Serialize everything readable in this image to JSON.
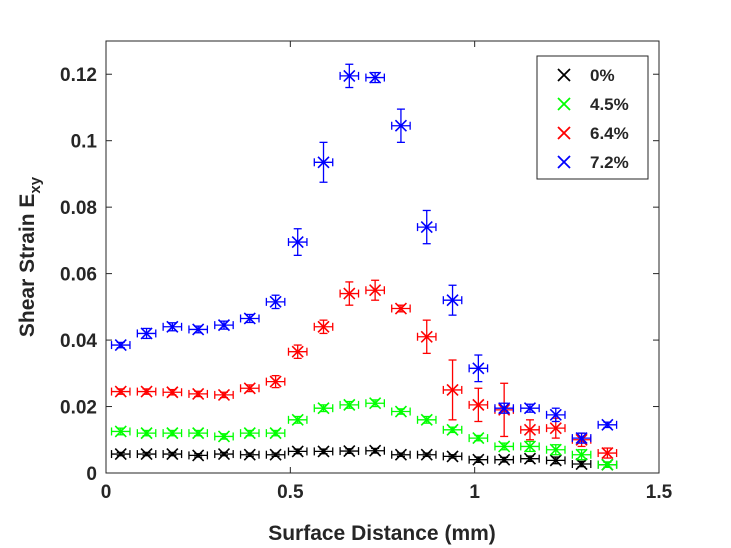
{
  "chart_data": {
    "type": "scatter",
    "title": "",
    "xlabel": "Surface Distance (mm)",
    "ylabel_main": "Shear Strain E",
    "ylabel_sub": "xy",
    "xlim": [
      0,
      1.5
    ],
    "ylim": [
      0,
      0.13
    ],
    "xticks": [
      0,
      0.5,
      1,
      1.5
    ],
    "xtick_labels": [
      "0",
      "0.5",
      "1",
      "1.5"
    ],
    "yticks": [
      0,
      0.02,
      0.04,
      0.06,
      0.08,
      0.1,
      0.12
    ],
    "ytick_labels": [
      "0",
      "0.02",
      "0.04",
      "0.06",
      "0.08",
      "0.1",
      "0.12"
    ],
    "grid": false,
    "legend_position": "top-right",
    "x_error": 0.025,
    "series": [
      {
        "name": "0%",
        "color": "#000000",
        "x": [
          0.04,
          0.11,
          0.18,
          0.25,
          0.32,
          0.39,
          0.46,
          0.52,
          0.59,
          0.66,
          0.73,
          0.8,
          0.87,
          0.94,
          1.01,
          1.08,
          1.15,
          1.22,
          1.29,
          1.36
        ],
        "y": [
          0.0057,
          0.0057,
          0.0057,
          0.0053,
          0.0057,
          0.0055,
          0.0055,
          0.0065,
          0.0065,
          0.0066,
          0.0067,
          0.0055,
          0.0055,
          0.005,
          0.004,
          0.004,
          0.0043,
          0.0038,
          0.0027,
          0.0025
        ],
        "yerr": [
          0.0005,
          0.0005,
          0.0005,
          0.0005,
          0.0005,
          0.0005,
          0.0005,
          0.0007,
          0.0007,
          0.0007,
          0.0007,
          0.0005,
          0.0005,
          0.0005,
          0.0008,
          0.0007,
          0.0008,
          0.001,
          0.0008,
          0.0008
        ]
      },
      {
        "name": "4.5%",
        "color": "#00ff00",
        "x": [
          0.04,
          0.11,
          0.18,
          0.25,
          0.32,
          0.39,
          0.46,
          0.52,
          0.59,
          0.66,
          0.73,
          0.8,
          0.87,
          0.94,
          1.01,
          1.08,
          1.15,
          1.22,
          1.29,
          1.36
        ],
        "y": [
          0.0125,
          0.012,
          0.012,
          0.012,
          0.011,
          0.012,
          0.012,
          0.016,
          0.0195,
          0.0205,
          0.021,
          0.0185,
          0.016,
          0.013,
          0.0105,
          0.008,
          0.008,
          0.007,
          0.0055,
          0.0025
        ],
        "yerr": [
          0.001,
          0.0008,
          0.0008,
          0.0008,
          0.0008,
          0.0008,
          0.0008,
          0.001,
          0.001,
          0.001,
          0.001,
          0.0008,
          0.001,
          0.0008,
          0.0008,
          0.001,
          0.0015,
          0.0015,
          0.0015,
          0.0008
        ]
      },
      {
        "name": "6.4%",
        "color": "#ff0000",
        "x": [
          0.04,
          0.11,
          0.18,
          0.25,
          0.32,
          0.39,
          0.46,
          0.52,
          0.59,
          0.66,
          0.73,
          0.8,
          0.87,
          0.94,
          1.01,
          1.08,
          1.15,
          1.22,
          1.29,
          1.36
        ],
        "y": [
          0.0245,
          0.0245,
          0.0243,
          0.0238,
          0.0235,
          0.0255,
          0.0275,
          0.0365,
          0.044,
          0.054,
          0.055,
          0.0495,
          0.041,
          0.025,
          0.0205,
          0.019,
          0.013,
          0.0135,
          0.01,
          0.006
        ],
        "yerr": [
          0.0008,
          0.0008,
          0.0008,
          0.0008,
          0.0008,
          0.001,
          0.0018,
          0.002,
          0.002,
          0.0035,
          0.003,
          0.001,
          0.005,
          0.009,
          0.005,
          0.008,
          0.003,
          0.003,
          0.002,
          0.0015
        ]
      },
      {
        "name": "7.2%",
        "color": "#0000ff",
        "x": [
          0.04,
          0.11,
          0.18,
          0.25,
          0.32,
          0.39,
          0.46,
          0.52,
          0.59,
          0.66,
          0.73,
          0.8,
          0.87,
          0.94,
          1.01,
          1.08,
          1.15,
          1.22,
          1.29,
          1.36
        ],
        "y": [
          0.0385,
          0.042,
          0.044,
          0.0432,
          0.0445,
          0.0465,
          0.0515,
          0.0695,
          0.0935,
          0.1195,
          0.119,
          0.1045,
          0.074,
          0.052,
          0.0315,
          0.0195,
          0.0195,
          0.0175,
          0.0105,
          0.0145
        ],
        "yerr": [
          0.0008,
          0.0015,
          0.0012,
          0.001,
          0.0012,
          0.0012,
          0.002,
          0.004,
          0.006,
          0.0035,
          0.0015,
          0.005,
          0.005,
          0.0045,
          0.004,
          0.0015,
          0.0012,
          0.002,
          0.0015,
          0.0008
        ]
      }
    ]
  }
}
